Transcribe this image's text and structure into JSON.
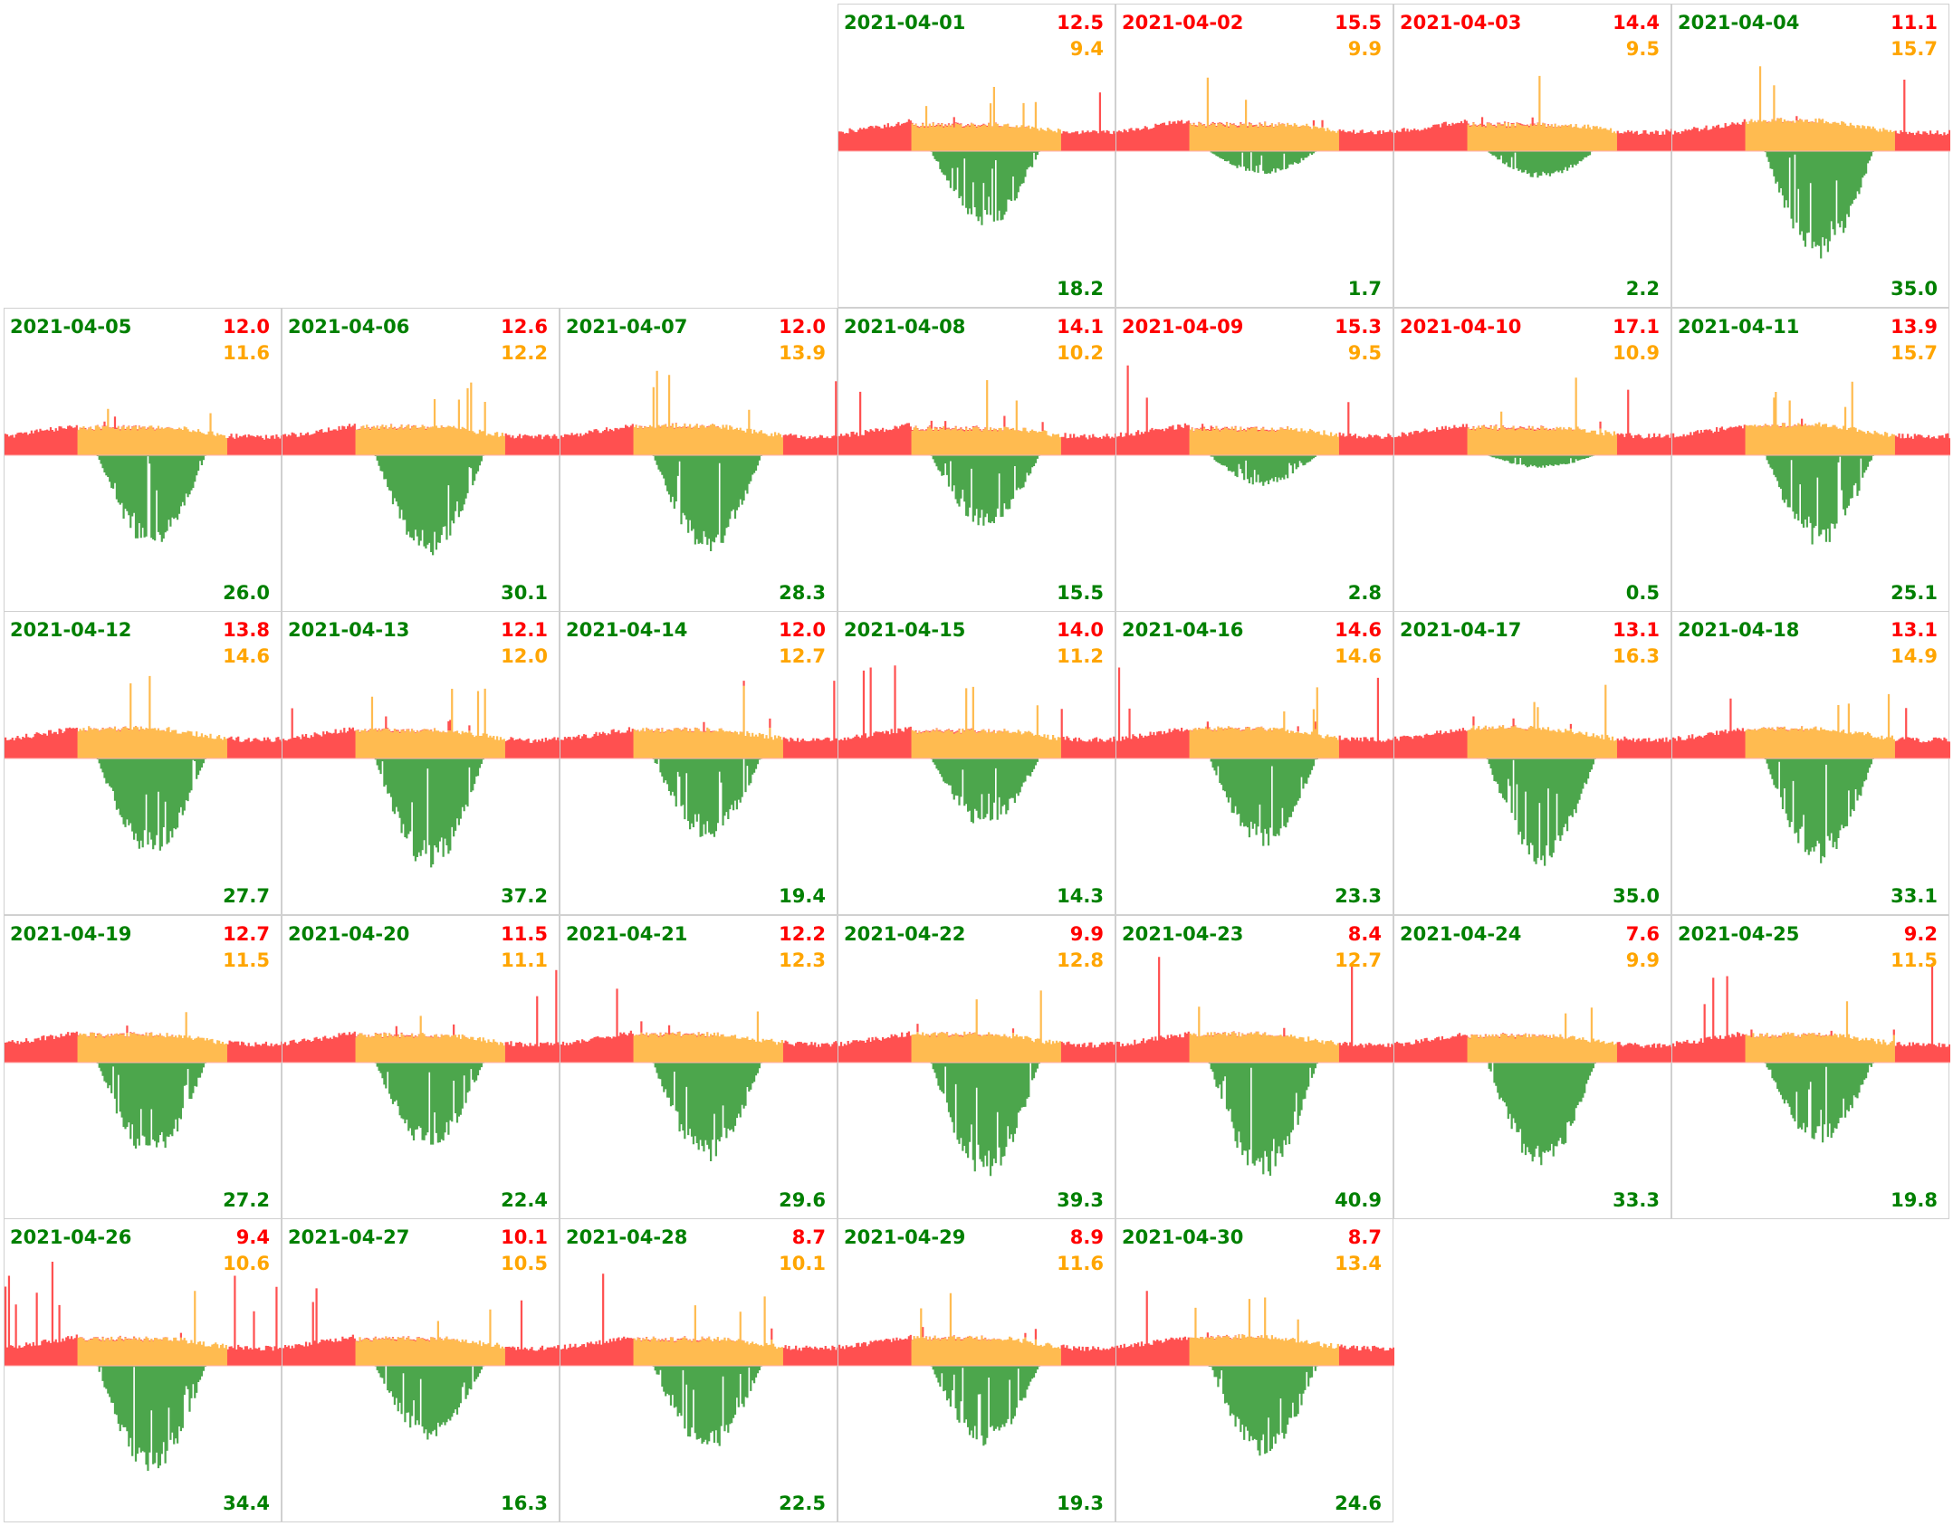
{
  "chart_data": {
    "type": "area",
    "title": "",
    "layout": "calendar-month",
    "week_start": "Monday",
    "colors": {
      "import": "#ff5050",
      "self_consumption": "#ffbb50",
      "export": "#4ca64c",
      "label_good": "#008000",
      "label_bad": "#ff0000",
      "import_text": "#ff0000",
      "self_text": "#ffa500",
      "export_text": "#008000"
    },
    "series_names": [
      "import",
      "self_consumption",
      "export"
    ],
    "days": [
      {
        "date": "2021-04-01",
        "import": "12.5",
        "self": "9.4",
        "export": "18.2"
      },
      {
        "date": "2021-04-02",
        "import": "15.5",
        "self": "9.9",
        "export": "1.7"
      },
      {
        "date": "2021-04-03",
        "import": "14.4",
        "self": "9.5",
        "export": "2.2"
      },
      {
        "date": "2021-04-04",
        "import": "11.1",
        "self": "15.7",
        "export": "35.0"
      },
      {
        "date": "2021-04-05",
        "import": "12.0",
        "self": "11.6",
        "export": "26.0"
      },
      {
        "date": "2021-04-06",
        "import": "12.6",
        "self": "12.2",
        "export": "30.1"
      },
      {
        "date": "2021-04-07",
        "import": "12.0",
        "self": "13.9",
        "export": "28.3"
      },
      {
        "date": "2021-04-08",
        "import": "14.1",
        "self": "10.2",
        "export": "15.5"
      },
      {
        "date": "2021-04-09",
        "import": "15.3",
        "self": "9.5",
        "export": "2.8"
      },
      {
        "date": "2021-04-10",
        "import": "17.1",
        "self": "10.9",
        "export": "0.5"
      },
      {
        "date": "2021-04-11",
        "import": "13.9",
        "self": "15.7",
        "export": "25.1"
      },
      {
        "date": "2021-04-12",
        "import": "13.8",
        "self": "14.6",
        "export": "27.7"
      },
      {
        "date": "2021-04-13",
        "import": "12.1",
        "self": "12.0",
        "export": "37.2"
      },
      {
        "date": "2021-04-14",
        "import": "12.0",
        "self": "12.7",
        "export": "19.4"
      },
      {
        "date": "2021-04-15",
        "import": "14.0",
        "self": "11.2",
        "export": "14.3"
      },
      {
        "date": "2021-04-16",
        "import": "14.6",
        "self": "14.6",
        "export": "23.3"
      },
      {
        "date": "2021-04-17",
        "import": "13.1",
        "self": "16.3",
        "export": "35.0"
      },
      {
        "date": "2021-04-18",
        "import": "13.1",
        "self": "14.9",
        "export": "33.1"
      },
      {
        "date": "2021-04-19",
        "import": "12.7",
        "self": "11.5",
        "export": "27.2"
      },
      {
        "date": "2021-04-20",
        "import": "11.5",
        "self": "11.1",
        "export": "22.4"
      },
      {
        "date": "2021-04-21",
        "import": "12.2",
        "self": "12.3",
        "export": "29.6"
      },
      {
        "date": "2021-04-22",
        "import": "9.9",
        "self": "12.8",
        "export": "39.3"
      },
      {
        "date": "2021-04-23",
        "import": "8.4",
        "self": "12.7",
        "export": "40.9"
      },
      {
        "date": "2021-04-24",
        "import": "7.6",
        "self": "9.9",
        "export": "33.3"
      },
      {
        "date": "2021-04-25",
        "import": "9.2",
        "self": "11.5",
        "export": "19.8"
      },
      {
        "date": "2021-04-26",
        "import": "9.4",
        "self": "10.6",
        "export": "34.4"
      },
      {
        "date": "2021-04-27",
        "import": "10.1",
        "self": "10.5",
        "export": "16.3"
      },
      {
        "date": "2021-04-28",
        "import": "8.7",
        "self": "10.1",
        "export": "22.5"
      },
      {
        "date": "2021-04-29",
        "import": "8.9",
        "self": "11.6",
        "export": "19.3"
      },
      {
        "date": "2021-04-30",
        "import": "8.7",
        "self": "13.4",
        "export": "24.6"
      }
    ]
  }
}
